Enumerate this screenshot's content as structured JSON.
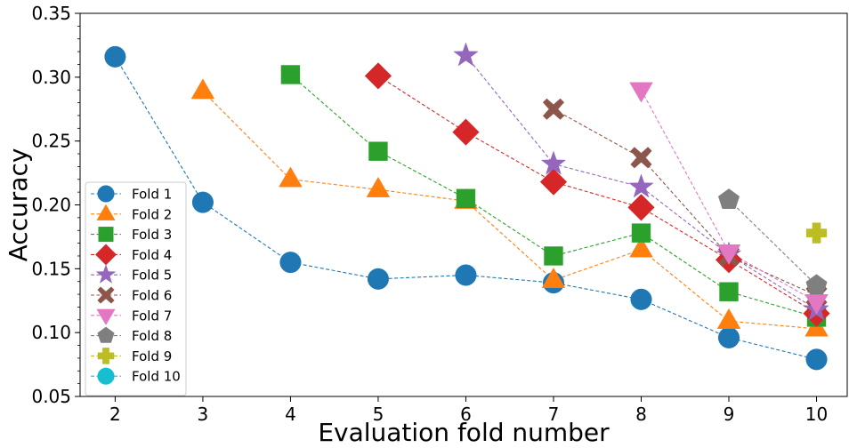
{
  "chart_data": {
    "type": "line",
    "xlabel": "Evaluation fold number",
    "ylabel": "Accuracy",
    "xlim": [
      1.6,
      10.35
    ],
    "ylim": [
      0.05,
      0.35
    ],
    "x_ticks": [
      "2",
      "3",
      "4",
      "5",
      "6",
      "7",
      "8",
      "9",
      "10"
    ],
    "y_ticks": [
      "0.05",
      "0.10",
      "0.15",
      "0.20",
      "0.25",
      "0.30",
      "0.35"
    ],
    "grid": false,
    "legend_position": "lower-left",
    "line_style": "dashed",
    "series": [
      {
        "name": "Fold 1",
        "color": "#1f77b4",
        "marker": "circle",
        "points": [
          [
            2,
            0.316
          ],
          [
            3,
            0.202
          ],
          [
            4,
            0.155
          ],
          [
            5,
            0.142
          ],
          [
            6,
            0.145
          ],
          [
            7,
            0.139
          ],
          [
            8,
            0.126
          ],
          [
            9,
            0.096
          ],
          [
            10,
            0.079
          ]
        ]
      },
      {
        "name": "Fold 2",
        "color": "#ff7f0e",
        "marker": "triangle-up",
        "points": [
          [
            3,
            0.289
          ],
          [
            4,
            0.22
          ],
          [
            5,
            0.212
          ],
          [
            6,
            0.203
          ],
          [
            7,
            0.141
          ],
          [
            8,
            0.165
          ],
          [
            9,
            0.109
          ],
          [
            10,
            0.103
          ]
        ]
      },
      {
        "name": "Fold 3",
        "color": "#2ca02c",
        "marker": "square",
        "points": [
          [
            4,
            0.302
          ],
          [
            5,
            0.242
          ],
          [
            6,
            0.205
          ],
          [
            7,
            0.16
          ],
          [
            8,
            0.178
          ],
          [
            9,
            0.132
          ],
          [
            10,
            0.112
          ]
        ]
      },
      {
        "name": "Fold 4",
        "color": "#d62728",
        "marker": "diamond",
        "points": [
          [
            5,
            0.301
          ],
          [
            6,
            0.257
          ],
          [
            7,
            0.218
          ],
          [
            8,
            0.198
          ],
          [
            9,
            0.157
          ],
          [
            10,
            0.115
          ]
        ]
      },
      {
        "name": "Fold 5",
        "color": "#9467bd",
        "marker": "star",
        "points": [
          [
            6,
            0.317
          ],
          [
            7,
            0.232
          ],
          [
            8,
            0.214
          ],
          [
            9,
            0.161
          ],
          [
            10,
            0.118
          ]
        ]
      },
      {
        "name": "Fold 6",
        "color": "#8c564b",
        "marker": "x-filled",
        "points": [
          [
            7,
            0.275
          ],
          [
            8,
            0.237
          ],
          [
            9,
            0.16
          ],
          [
            10,
            0.129
          ]
        ]
      },
      {
        "name": "Fold 7",
        "color": "#e377c2",
        "marker": "triangle-down",
        "points": [
          [
            8,
            0.29
          ],
          [
            9,
            0.163
          ],
          [
            10,
            0.124
          ]
        ]
      },
      {
        "name": "Fold 8",
        "color": "#7f7f7f",
        "marker": "pentagon",
        "points": [
          [
            9,
            0.204
          ],
          [
            10,
            0.137
          ]
        ]
      },
      {
        "name": "Fold 9",
        "color": "#bcbd22",
        "marker": "plus-filled",
        "points": [
          [
            10,
            0.178
          ]
        ]
      },
      {
        "name": "Fold 10",
        "color": "#17becf",
        "marker": "circle",
        "points": []
      }
    ]
  }
}
